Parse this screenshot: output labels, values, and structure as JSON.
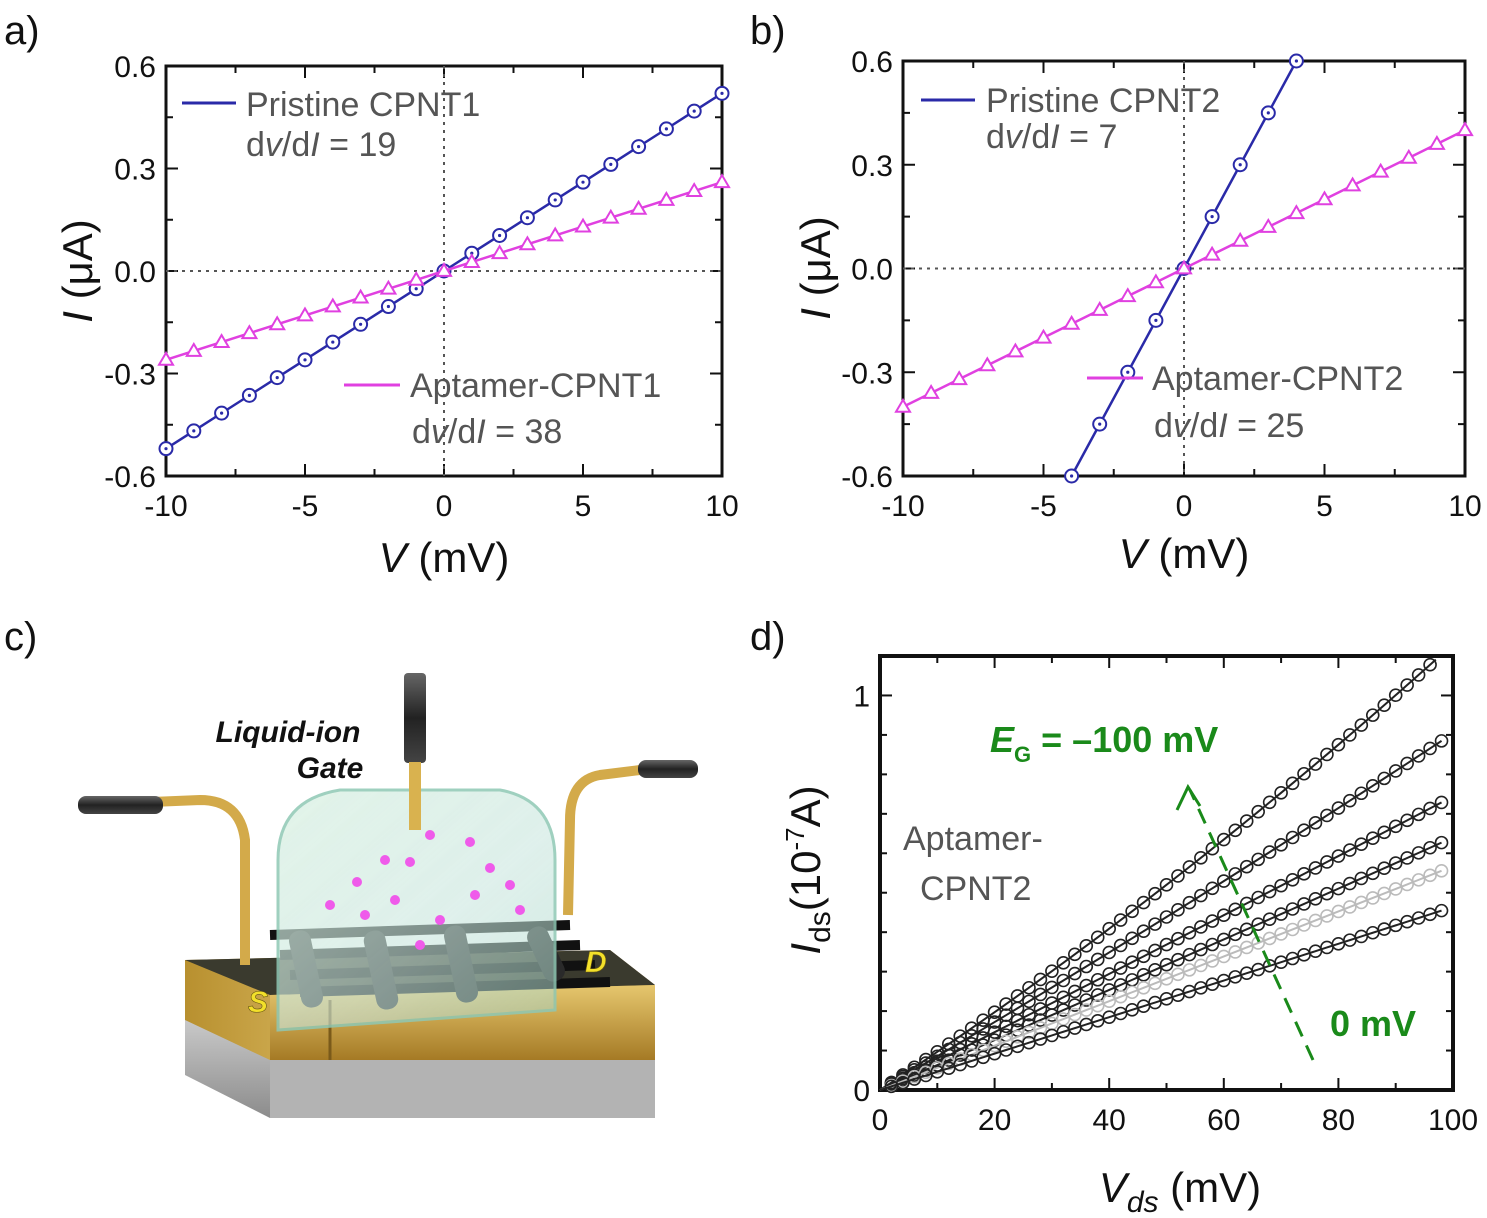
{
  "panels": {
    "a": {
      "label": "a)"
    },
    "b": {
      "label": "b)"
    },
    "c": {
      "label": "c)",
      "gate_label_1": "Liquid-ion",
      "gate_label_2": "Gate",
      "source_label": "S",
      "drain_label": "D"
    },
    "d": {
      "label": "d)"
    }
  },
  "colors": {
    "blue": "#2a2aa8",
    "magenta": "#e040e0",
    "green": "#1a8a1a",
    "gold": "#c9a24a",
    "dark_curve": "#222222",
    "light_curve": "#bbbbbb"
  },
  "chart_data": [
    {
      "id": "a",
      "type": "line",
      "xlabel_italic": "V",
      "xlabel_unit": " (mV)",
      "ylabel_italic": "I",
      "ylabel_unit": " (μA)",
      "xlim": [
        -10,
        10
      ],
      "ylim": [
        -0.6,
        0.6
      ],
      "xticks": [
        "-10",
        "-5",
        "0",
        "5",
        "10"
      ],
      "yticks": [
        "-0.6",
        "-0.3",
        "0.0",
        "0.3",
        "0.6"
      ],
      "series": [
        {
          "name": "Pristine CPNT1",
          "annotation_prefix": "d",
          "annotation_v": "v",
          "annotation_mid": "/d",
          "annotation_i": "I",
          "annotation_value": " = 19",
          "marker": "circle-dot",
          "color": "#2a2aa8",
          "x": [
            -10,
            -9,
            -8,
            -7,
            -6,
            -5,
            -4,
            -3,
            -2,
            -1,
            0,
            1,
            2,
            3,
            4,
            5,
            6,
            7,
            8,
            9,
            10
          ],
          "y": [
            -0.52,
            -0.468,
            -0.416,
            -0.364,
            -0.312,
            -0.26,
            -0.208,
            -0.156,
            -0.104,
            -0.052,
            0,
            0.052,
            0.104,
            0.156,
            0.208,
            0.26,
            0.312,
            0.364,
            0.416,
            0.468,
            0.52
          ]
        },
        {
          "name": "Aptamer-CPNT1",
          "annotation_prefix": "d",
          "annotation_v": "v",
          "annotation_mid": "/d",
          "annotation_i": "I",
          "annotation_value": " = 38",
          "marker": "triangle",
          "color": "#e040e0",
          "x": [
            -10,
            -9,
            -8,
            -7,
            -6,
            -5,
            -4,
            -3,
            -2,
            -1,
            0,
            1,
            2,
            3,
            4,
            5,
            6,
            7,
            8,
            9,
            10
          ],
          "y": [
            -0.26,
            -0.234,
            -0.208,
            -0.182,
            -0.156,
            -0.13,
            -0.104,
            -0.078,
            -0.052,
            -0.026,
            0,
            0.026,
            0.052,
            0.078,
            0.104,
            0.13,
            0.156,
            0.182,
            0.208,
            0.234,
            0.26
          ]
        }
      ]
    },
    {
      "id": "b",
      "type": "line",
      "xlabel_italic": "V",
      "xlabel_unit": " (mV)",
      "ylabel_italic": "I",
      "ylabel_unit": " (μA)",
      "xlim": [
        -10,
        10
      ],
      "ylim": [
        -0.6,
        0.6
      ],
      "xticks": [
        "-10",
        "-5",
        "0",
        "5",
        "10"
      ],
      "yticks": [
        "-0.6",
        "-0.3",
        "0.0",
        "0.3",
        "0.6"
      ],
      "series": [
        {
          "name": "Pristine CPNT2",
          "annotation_prefix": "d",
          "annotation_v": "v",
          "annotation_mid": "/d",
          "annotation_i": "I",
          "annotation_value": " = 7",
          "marker": "circle-dot",
          "color": "#2a2aa8",
          "x": [
            -4,
            -3,
            -2,
            -1,
            0,
            1,
            2,
            3,
            4
          ],
          "y": [
            -0.6,
            -0.45,
            -0.3,
            -0.15,
            0,
            0.15,
            0.3,
            0.45,
            0.6
          ]
        },
        {
          "name": "Aptamer-CPNT2",
          "annotation_prefix": "d",
          "annotation_v": "v",
          "annotation_mid": "/d",
          "annotation_i": "I",
          "annotation_value": " = 25",
          "marker": "triangle",
          "color": "#e040e0",
          "x": [
            -10,
            -9,
            -8,
            -7,
            -6,
            -5,
            -4,
            -3,
            -2,
            -1,
            0,
            1,
            2,
            3,
            4,
            5,
            6,
            7,
            8,
            9,
            10
          ],
          "y": [
            -0.4,
            -0.36,
            -0.32,
            -0.28,
            -0.24,
            -0.2,
            -0.16,
            -0.12,
            -0.08,
            -0.04,
            0,
            0.04,
            0.08,
            0.12,
            0.16,
            0.2,
            0.24,
            0.28,
            0.32,
            0.36,
            0.4
          ]
        }
      ]
    },
    {
      "id": "d",
      "type": "line",
      "xlabel_italic": "V",
      "xlabel_sub": "ds",
      "xlabel_unit": " (mV)",
      "ylabel_italic": "I",
      "ylabel_sub": "ds",
      "ylabel_unit_a": "(10",
      "ylabel_sup": "-7",
      "ylabel_unit_b": "A)",
      "xlim": [
        0,
        100
      ],
      "ylim": [
        0,
        1.1
      ],
      "xticks": [
        "0",
        "20",
        "40",
        "60",
        "80",
        "100"
      ],
      "yticks": [
        "0",
        "1"
      ],
      "sample_label_1": "Aptamer-",
      "sample_label_2": "CPNT2",
      "arrow_top_label_e": "E",
      "arrow_top_label_sub": "G",
      "arrow_top_label_value": " = –100 mV",
      "arrow_bottom_label": "0 mV",
      "x_samples": [
        2,
        4,
        6,
        8,
        10,
        12,
        14,
        16,
        18,
        20,
        22,
        24,
        26,
        28,
        30,
        32,
        34,
        36,
        38,
        40,
        42,
        44,
        46,
        48,
        50,
        52,
        54,
        56,
        58,
        60,
        62,
        64,
        66,
        68,
        70,
        72,
        74,
        76,
        78,
        80,
        82,
        84,
        86,
        88,
        90,
        92,
        94,
        96,
        98
      ],
      "series": [
        {
          "slope": 0.0095,
          "curv": 1.8e-05,
          "shade": "dark"
        },
        {
          "slope": 0.0085,
          "curv": 5.4e-06,
          "shade": "dark"
        },
        {
          "slope": 0.0073,
          "curv": 1.4e-06,
          "shade": "dark"
        },
        {
          "slope": 0.0063,
          "curv": 1e-06,
          "shade": "dark"
        },
        {
          "slope": 0.0056,
          "curv": 7e-07,
          "shade": "light"
        },
        {
          "slope": 0.0046,
          "curv": 4e-07,
          "shade": "dark"
        }
      ]
    }
  ]
}
